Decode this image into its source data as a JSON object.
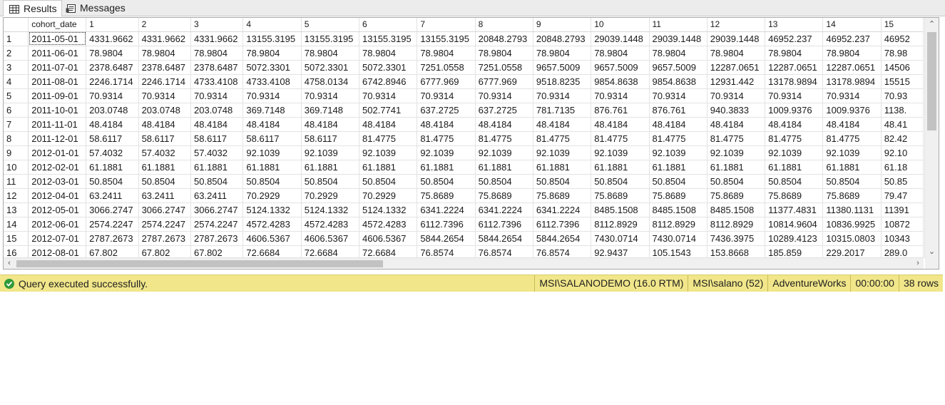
{
  "tabs": {
    "results": "Results",
    "messages": "Messages"
  },
  "grid": {
    "columns": [
      "cohort_date",
      "1",
      "2",
      "3",
      "4",
      "5",
      "6",
      "7",
      "8",
      "9",
      "10",
      "11",
      "12",
      "13",
      "14",
      "15"
    ],
    "rows": [
      [
        "1",
        "2011-05-01",
        "4331.9662",
        "4331.9662",
        "4331.9662",
        "13155.3195",
        "13155.3195",
        "13155.3195",
        "13155.3195",
        "20848.2793",
        "20848.2793",
        "29039.1448",
        "29039.1448",
        "29039.1448",
        "46952.237",
        "46952.237",
        "46952"
      ],
      [
        "2",
        "2011-06-01",
        "78.9804",
        "78.9804",
        "78.9804",
        "78.9804",
        "78.9804",
        "78.9804",
        "78.9804",
        "78.9804",
        "78.9804",
        "78.9804",
        "78.9804",
        "78.9804",
        "78.9804",
        "78.9804",
        "78.98"
      ],
      [
        "3",
        "2011-07-01",
        "2378.6487",
        "2378.6487",
        "2378.6487",
        "5072.3301",
        "5072.3301",
        "5072.3301",
        "7251.0558",
        "7251.0558",
        "9657.5009",
        "9657.5009",
        "9657.5009",
        "12287.0651",
        "12287.0651",
        "12287.0651",
        "14506"
      ],
      [
        "4",
        "2011-08-01",
        "2246.1714",
        "2246.1714",
        "4733.4108",
        "4733.4108",
        "4758.0134",
        "6742.8946",
        "6777.969",
        "6777.969",
        "9518.8235",
        "9854.8638",
        "9854.8638",
        "12931.442",
        "13178.9894",
        "13178.9894",
        "15515"
      ],
      [
        "5",
        "2011-09-01",
        "70.9314",
        "70.9314",
        "70.9314",
        "70.9314",
        "70.9314",
        "70.9314",
        "70.9314",
        "70.9314",
        "70.9314",
        "70.9314",
        "70.9314",
        "70.9314",
        "70.9314",
        "70.9314",
        "70.93"
      ],
      [
        "6",
        "2011-10-01",
        "203.0748",
        "203.0748",
        "203.0748",
        "369.7148",
        "369.7148",
        "502.7741",
        "637.2725",
        "637.2725",
        "781.7135",
        "876.761",
        "876.761",
        "940.3833",
        "1009.9376",
        "1009.9376",
        "1138."
      ],
      [
        "7",
        "2011-11-01",
        "48.4184",
        "48.4184",
        "48.4184",
        "48.4184",
        "48.4184",
        "48.4184",
        "48.4184",
        "48.4184",
        "48.4184",
        "48.4184",
        "48.4184",
        "48.4184",
        "48.4184",
        "48.4184",
        "48.41"
      ],
      [
        "8",
        "2011-12-01",
        "58.6117",
        "58.6117",
        "58.6117",
        "58.6117",
        "58.6117",
        "81.4775",
        "81.4775",
        "81.4775",
        "81.4775",
        "81.4775",
        "81.4775",
        "81.4775",
        "81.4775",
        "81.4775",
        "82.42"
      ],
      [
        "9",
        "2012-01-01",
        "57.4032",
        "57.4032",
        "57.4032",
        "92.1039",
        "92.1039",
        "92.1039",
        "92.1039",
        "92.1039",
        "92.1039",
        "92.1039",
        "92.1039",
        "92.1039",
        "92.1039",
        "92.1039",
        "92.10"
      ],
      [
        "10",
        "2012-02-01",
        "61.1881",
        "61.1881",
        "61.1881",
        "61.1881",
        "61.1881",
        "61.1881",
        "61.1881",
        "61.1881",
        "61.1881",
        "61.1881",
        "61.1881",
        "61.1881",
        "61.1881",
        "61.1881",
        "61.18"
      ],
      [
        "11",
        "2012-03-01",
        "50.8504",
        "50.8504",
        "50.8504",
        "50.8504",
        "50.8504",
        "50.8504",
        "50.8504",
        "50.8504",
        "50.8504",
        "50.8504",
        "50.8504",
        "50.8504",
        "50.8504",
        "50.8504",
        "50.85"
      ],
      [
        "12",
        "2012-04-01",
        "63.2411",
        "63.2411",
        "63.2411",
        "70.2929",
        "70.2929",
        "70.2929",
        "75.8689",
        "75.8689",
        "75.8689",
        "75.8689",
        "75.8689",
        "75.8689",
        "75.8689",
        "75.8689",
        "79.47"
      ],
      [
        "13",
        "2012-05-01",
        "3066.2747",
        "3066.2747",
        "3066.2747",
        "5124.1332",
        "5124.1332",
        "5124.1332",
        "6341.2224",
        "6341.2224",
        "6341.2224",
        "8485.1508",
        "8485.1508",
        "8485.1508",
        "11377.4831",
        "11380.1131",
        "11391"
      ],
      [
        "14",
        "2012-06-01",
        "2574.2247",
        "2574.2247",
        "2574.2247",
        "4572.4283",
        "4572.4283",
        "4572.4283",
        "6112.7396",
        "6112.7396",
        "6112.7396",
        "8112.8929",
        "8112.8929",
        "8112.8929",
        "10814.9604",
        "10836.9925",
        "10872"
      ],
      [
        "15",
        "2012-07-01",
        "2787.2673",
        "2787.2673",
        "2787.2673",
        "4606.5367",
        "4606.5367",
        "4606.5367",
        "5844.2654",
        "5844.2654",
        "5844.2654",
        "7430.0714",
        "7430.0714",
        "7436.3975",
        "10289.4123",
        "10315.0803",
        "10343"
      ],
      [
        "16",
        "2012-08-01",
        "67.802",
        "67.802",
        "67.802",
        "72.6684",
        "72.6684",
        "72.6684",
        "76.8574",
        "76.8574",
        "76.8574",
        "92.9437",
        "105.1543",
        "153.8668",
        "185.859",
        "229.2017",
        "289.0"
      ]
    ]
  },
  "status": {
    "message": "Query executed successfully.",
    "server": "MSI\\SALANODEMO (16.0 RTM)",
    "user": "MSI\\salano (52)",
    "database": "AdventureWorks",
    "elapsed": "00:00:00",
    "rows": "38 rows",
    "color": "#f1e68a"
  },
  "icons": {
    "results_tab": "grid-icon",
    "messages_tab": "messages-icon",
    "status": "check-circle-icon"
  }
}
